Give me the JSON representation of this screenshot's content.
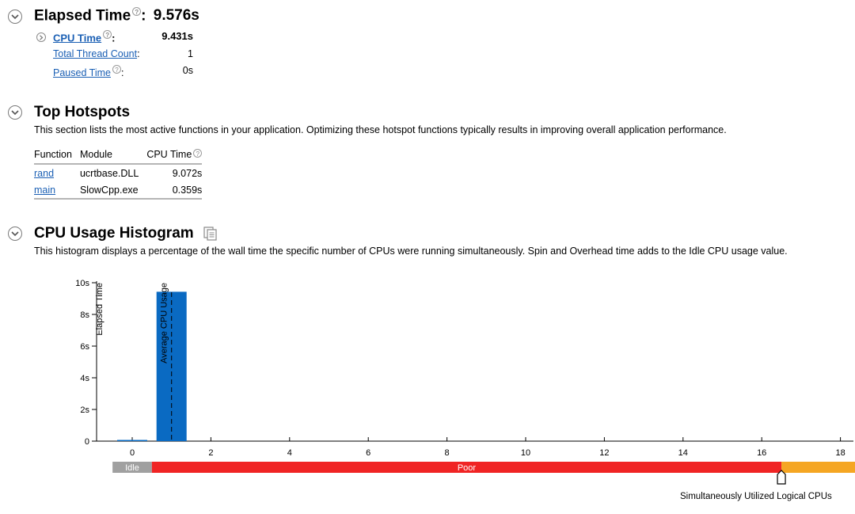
{
  "elapsed": {
    "title": "Elapsed Time",
    "colon": ":",
    "value": "9.576s",
    "metrics": [
      {
        "label": "CPU Time",
        "colon": ":",
        "value": "9.431s"
      },
      {
        "label": "Total Thread Count",
        "colon": ":",
        "value": "1"
      },
      {
        "label": "Paused Time",
        "colon": ":",
        "value": "0s"
      }
    ]
  },
  "hotspots": {
    "title": "Top Hotspots",
    "description": "This section lists the most active functions in your application. Optimizing these hotspot functions typically results in improving overall application performance.",
    "columns": [
      "Function",
      "Module",
      "CPU Time"
    ],
    "rows": [
      {
        "function": "rand",
        "module": "ucrtbase.DLL",
        "cpu_time": "9.072s"
      },
      {
        "function": "main",
        "module": "SlowCpp.exe",
        "cpu_time": "0.359s"
      }
    ]
  },
  "histogram": {
    "title": "CPU Usage Histogram",
    "description": "This histogram displays a percentage of the wall time the specific number of CPUs were running simultaneously. Spin and Overhead time adds to the Idle CPU usage value.",
    "y_axis_label": "Elapsed Time",
    "avg_label": "Average CPU Usage",
    "x_axis_label": "Simultaneously Utilized Logical CPUs",
    "zones": [
      {
        "label": "Idle",
        "color": "#a0a0a0"
      },
      {
        "label": "Poor",
        "color": "#f02424"
      },
      {
        "label": "",
        "color": "#f5a623"
      }
    ]
  },
  "help_glyph": "?",
  "chart_data": {
    "type": "bar",
    "x": [
      0,
      1
    ],
    "values": [
      0.05,
      9.43
    ],
    "xticks": [
      "0",
      "2",
      "4",
      "6",
      "8",
      "10",
      "12",
      "14",
      "16",
      "18"
    ],
    "xtick_values": [
      0,
      2,
      4,
      6,
      8,
      10,
      12,
      14,
      16,
      18
    ],
    "yticks": [
      "0",
      "2s",
      "4s",
      "6s",
      "8s",
      "10s"
    ],
    "ytick_values": [
      0,
      2,
      4,
      6,
      8,
      10
    ],
    "ylim": [
      0,
      10
    ],
    "xlim": [
      -0.5,
      18.2
    ],
    "average_cpu_usage": 1.0,
    "ylabel": "Elapsed Time",
    "xlabel": "Simultaneously Utilized Logical CPUs",
    "bar_color": "#0a6ac2",
    "zone_boundaries": [
      0.5,
      16.5
    ]
  }
}
